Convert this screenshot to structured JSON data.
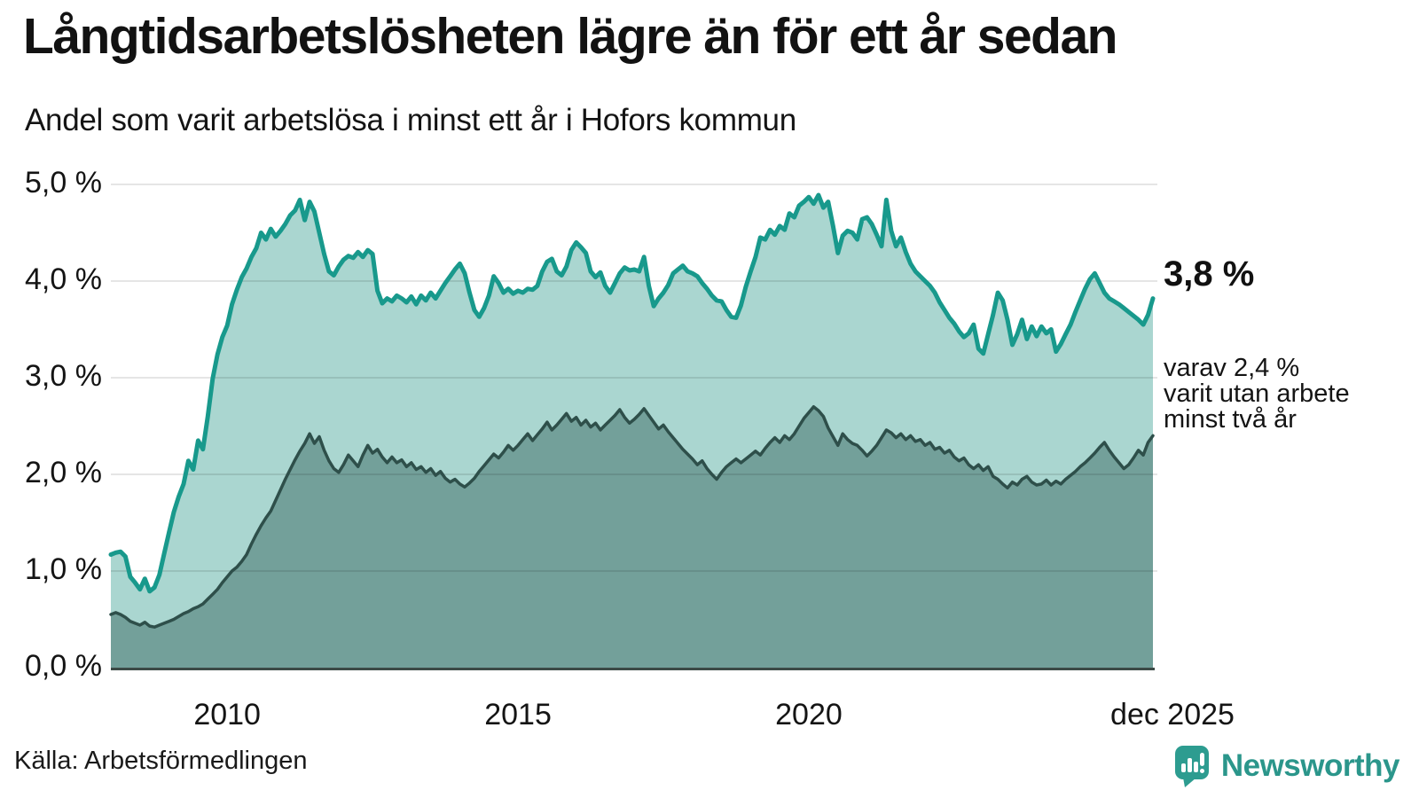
{
  "header": {
    "title": "Långtidsarbetslösheten lägre än för ett år sedan",
    "subtitle": "Andel som varit arbetslösa i minst ett år i Hofors kommun"
  },
  "chart_data": {
    "type": "area",
    "title": "Långtidsarbetslösheten lägre än för ett år sedan",
    "subtitle": "Andel som varit arbetslösa i minst ett år i Hofors kommun",
    "unit": "%",
    "x_start": "2008-01",
    "x_end": "2025-12",
    "ylim": [
      0,
      5
    ],
    "grid": true,
    "legend_position": "none",
    "colors": {
      "series1_line": "#18998c",
      "series1_fill": "#aad6d0",
      "series2_line": "#2e4f4a",
      "series2_fill": "#73a09a",
      "baseline": "#3c4a46",
      "grid": "rgba(0,0,0,0.10)"
    },
    "y_ticks": [
      {
        "label": "0,0 %",
        "value": 0
      },
      {
        "label": "1,0 %",
        "value": 1
      },
      {
        "label": "2,0 %",
        "value": 2
      },
      {
        "label": "3,0 %",
        "value": 3
      },
      {
        "label": "4,0 %",
        "value": 4
      },
      {
        "label": "5,0 %",
        "value": 5
      }
    ],
    "x_ticks": [
      {
        "label": "2010",
        "index": 24
      },
      {
        "label": "2015",
        "index": 84
      },
      {
        "label": "2020",
        "index": 144
      },
      {
        "label": "dec 2025",
        "index": 215
      }
    ],
    "series": [
      {
        "name": "Andel arbetslösa minst ett år",
        "latest_value": 3.8,
        "values": [
          1.17,
          1.19,
          1.2,
          1.15,
          0.94,
          0.88,
          0.81,
          0.92,
          0.79,
          0.83,
          0.96,
          1.18,
          1.4,
          1.61,
          1.77,
          1.9,
          2.14,
          2.05,
          2.35,
          2.26,
          2.6,
          2.99,
          3.24,
          3.42,
          3.54,
          3.76,
          3.91,
          4.04,
          4.13,
          4.25,
          4.34,
          4.5,
          4.43,
          4.54,
          4.46,
          4.52,
          4.59,
          4.68,
          4.73,
          4.84,
          4.63,
          4.82,
          4.72,
          4.5,
          4.28,
          4.1,
          4.06,
          4.15,
          4.22,
          4.26,
          4.24,
          4.3,
          4.25,
          4.32,
          4.28,
          3.9,
          3.77,
          3.82,
          3.79,
          3.85,
          3.82,
          3.78,
          3.84,
          3.76,
          3.85,
          3.8,
          3.88,
          3.82,
          3.9,
          3.98,
          4.05,
          4.12,
          4.18,
          4.08,
          3.88,
          3.7,
          3.63,
          3.72,
          3.85,
          4.05,
          3.98,
          3.88,
          3.92,
          3.87,
          3.9,
          3.88,
          3.92,
          3.91,
          3.95,
          4.1,
          4.2,
          4.23,
          4.1,
          4.06,
          4.15,
          4.32,
          4.4,
          4.35,
          4.29,
          4.1,
          4.04,
          4.09,
          3.95,
          3.88,
          3.98,
          4.08,
          4.14,
          4.11,
          4.12,
          4.1,
          4.25,
          3.95,
          3.74,
          3.82,
          3.88,
          3.96,
          4.08,
          4.12,
          4.16,
          4.1,
          4.08,
          4.05,
          3.98,
          3.92,
          3.85,
          3.8,
          3.79,
          3.7,
          3.63,
          3.62,
          3.75,
          3.94,
          4.1,
          4.25,
          4.45,
          4.43,
          4.53,
          4.48,
          4.57,
          4.53,
          4.7,
          4.66,
          4.78,
          4.82,
          4.87,
          4.8,
          4.89,
          4.76,
          4.82,
          4.57,
          4.29,
          4.47,
          4.52,
          4.5,
          4.43,
          4.64,
          4.66,
          4.59,
          4.48,
          4.36,
          4.84,
          4.52,
          4.36,
          4.45,
          4.3,
          4.18,
          4.1,
          4.05,
          4.0,
          3.95,
          3.88,
          3.78,
          3.7,
          3.62,
          3.56,
          3.48,
          3.42,
          3.46,
          3.55,
          3.3,
          3.25,
          3.45,
          3.65,
          3.88,
          3.8,
          3.6,
          3.34,
          3.45,
          3.6,
          3.4,
          3.53,
          3.43,
          3.53,
          3.46,
          3.5,
          3.27,
          3.35,
          3.45,
          3.55,
          3.68,
          3.8,
          3.92,
          4.02,
          4.08,
          3.98,
          3.88,
          3.82,
          3.79,
          3.76,
          3.72,
          3.68,
          3.64,
          3.6,
          3.55,
          3.65,
          3.82
        ]
      },
      {
        "name": "varav arbetslösa minst två år",
        "latest_value": 2.4,
        "values": [
          0.55,
          0.57,
          0.55,
          0.52,
          0.48,
          0.46,
          0.44,
          0.47,
          0.43,
          0.42,
          0.44,
          0.46,
          0.48,
          0.5,
          0.53,
          0.56,
          0.58,
          0.61,
          0.63,
          0.66,
          0.71,
          0.76,
          0.81,
          0.88,
          0.94,
          1.0,
          1.04,
          1.1,
          1.17,
          1.28,
          1.38,
          1.47,
          1.55,
          1.62,
          1.73,
          1.84,
          1.95,
          2.05,
          2.15,
          2.24,
          2.32,
          2.42,
          2.32,
          2.39,
          2.25,
          2.14,
          2.06,
          2.02,
          2.1,
          2.2,
          2.14,
          2.08,
          2.2,
          2.3,
          2.22,
          2.26,
          2.18,
          2.12,
          2.18,
          2.12,
          2.15,
          2.08,
          2.12,
          2.05,
          2.08,
          2.02,
          2.06,
          1.99,
          2.03,
          1.96,
          1.92,
          1.95,
          1.9,
          1.87,
          1.91,
          1.96,
          2.03,
          2.09,
          2.15,
          2.21,
          2.17,
          2.23,
          2.3,
          2.25,
          2.3,
          2.36,
          2.42,
          2.35,
          2.41,
          2.47,
          2.54,
          2.46,
          2.51,
          2.57,
          2.63,
          2.55,
          2.59,
          2.51,
          2.56,
          2.49,
          2.53,
          2.46,
          2.51,
          2.56,
          2.61,
          2.67,
          2.59,
          2.53,
          2.57,
          2.62,
          2.68,
          2.61,
          2.54,
          2.47,
          2.51,
          2.44,
          2.38,
          2.32,
          2.26,
          2.21,
          2.16,
          2.1,
          2.14,
          2.06,
          2.0,
          1.95,
          2.02,
          2.08,
          2.12,
          2.16,
          2.12,
          2.16,
          2.2,
          2.24,
          2.2,
          2.27,
          2.33,
          2.38,
          2.33,
          2.4,
          2.36,
          2.42,
          2.5,
          2.58,
          2.64,
          2.7,
          2.66,
          2.6,
          2.48,
          2.39,
          2.3,
          2.42,
          2.36,
          2.32,
          2.3,
          2.25,
          2.19,
          2.24,
          2.3,
          2.38,
          2.46,
          2.43,
          2.38,
          2.42,
          2.36,
          2.4,
          2.34,
          2.36,
          2.3,
          2.33,
          2.26,
          2.28,
          2.22,
          2.25,
          2.18,
          2.14,
          2.17,
          2.1,
          2.06,
          2.1,
          2.04,
          2.08,
          1.98,
          1.95,
          1.9,
          1.86,
          1.92,
          1.89,
          1.95,
          1.98,
          1.92,
          1.89,
          1.9,
          1.94,
          1.89,
          1.93,
          1.9,
          1.95,
          1.99,
          2.03,
          2.08,
          2.12,
          2.17,
          2.22,
          2.28,
          2.33,
          2.25,
          2.18,
          2.12,
          2.06,
          2.1,
          2.17,
          2.25,
          2.2,
          2.33,
          2.4
        ]
      }
    ],
    "annotations": {
      "latest_total": "3,8 %",
      "two_year_lines": [
        "varav 2,4 %",
        "varit utan arbete",
        "minst två år"
      ]
    }
  },
  "footer": {
    "source": "Källa: Arbetsförmedlingen",
    "logo_text": "Newsworthy"
  }
}
